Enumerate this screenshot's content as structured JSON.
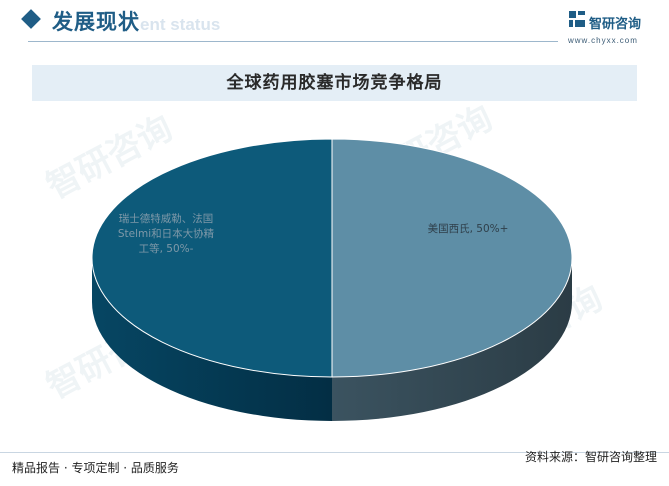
{
  "header": {
    "section_title": "发展现状",
    "section_subtitle": "ent status"
  },
  "logo": {
    "brand": "智研咨询",
    "site": "www.chyxx.com"
  },
  "colors": {
    "accent": "#1f5d86",
    "slice_left": "#0d5a7a",
    "slice_right": "#5e8ea6"
  },
  "chart_data": {
    "type": "pie",
    "title": "全球药用胶塞市场竞争格局",
    "slices": [
      {
        "label": "美国西氏, 50%+",
        "value": 50
      },
      {
        "label": "瑞士德特威勒、法国Stelmi和日本大协精工等, 50%-",
        "value": 50
      }
    ]
  },
  "footer": {
    "left": "精品报告 · 专项定制 · 品质服务",
    "right": "资料来源：智研咨询整理"
  },
  "watermark": "智研咨询"
}
